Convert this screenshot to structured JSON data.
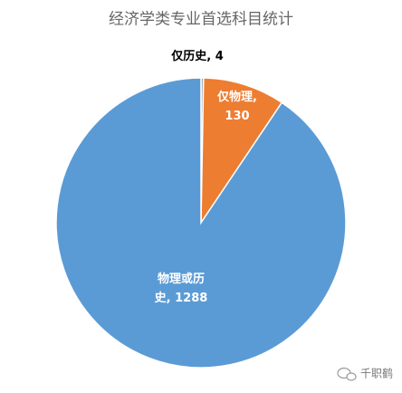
{
  "chart_data": {
    "type": "pie",
    "title": "经济学类专业首选科目统计",
    "categories": [
      "仅历史",
      "仅物理",
      "物理或历史"
    ],
    "values": [
      4,
      130,
      1288
    ],
    "value_labels": [
      [
        "仅历史, 4"
      ],
      [
        "仅物理,",
        "130"
      ],
      [
        "物理或历",
        "史, 1288"
      ]
    ],
    "colors": [
      "#a5a5a5",
      "#ed7d31",
      "#5b9bd5"
    ],
    "start_angle": 0,
    "direction": "clockwise",
    "watermark": "千职鹤"
  }
}
